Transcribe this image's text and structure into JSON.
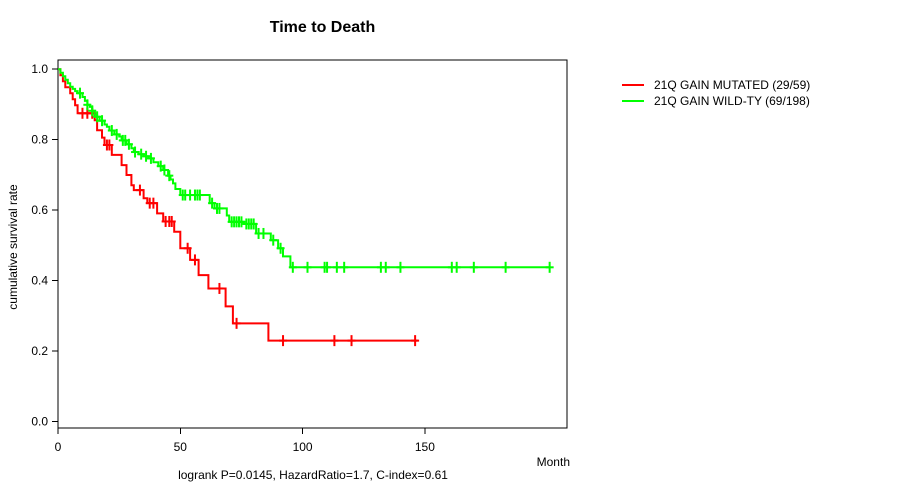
{
  "title": "Time to Death",
  "caption": "logrank P=0.0145, HazardRatio=1.7, C-index=0.61",
  "axes": {
    "x_label": "Month",
    "y_label": "cumulative survival rate",
    "x_tick_labels": [
      "0",
      "50",
      "100",
      "150"
    ],
    "y_tick_labels": [
      "0.0",
      "0.2",
      "0.4",
      "0.6",
      "0.8",
      "1.0"
    ]
  },
  "chart_data": {
    "type": "line",
    "subtype": "kaplan-meier-step-survival",
    "title": "Time to Death",
    "xlabel": "Month",
    "ylabel": "cumulative survival rate",
    "annotation": "logrank P=0.0145, HazardRatio=1.7, C-index=0.61",
    "xlim": [
      0,
      208
    ],
    "ylim": [
      0,
      1.0
    ],
    "x_ticks": [
      0,
      50,
      100,
      150
    ],
    "y_ticks": [
      0.0,
      0.2,
      0.4,
      0.6,
      0.8,
      1.0
    ],
    "grid": false,
    "legend_position": "right-outside",
    "series": [
      {
        "name": "21Q GAIN MUTATED (29/59)",
        "color": "#FF0000",
        "end_time": 147,
        "points": [
          [
            0,
            1.0
          ],
          [
            1,
            0.983
          ],
          [
            2,
            0.966
          ],
          [
            3,
            0.949
          ],
          [
            5,
            0.932
          ],
          [
            6,
            0.915
          ],
          [
            7,
            0.898
          ],
          [
            8,
            0.875
          ],
          [
            15,
            0.855
          ],
          [
            16,
            0.827
          ],
          [
            18,
            0.806
          ],
          [
            19,
            0.785
          ],
          [
            22,
            0.757
          ],
          [
            26,
            0.728
          ],
          [
            28,
            0.7
          ],
          [
            30,
            0.671
          ],
          [
            31,
            0.657
          ],
          [
            35,
            0.634
          ],
          [
            36.5,
            0.62
          ],
          [
            40.5,
            0.591
          ],
          [
            43,
            0.568
          ],
          [
            47.5,
            0.539
          ],
          [
            50,
            0.492
          ],
          [
            54,
            0.459
          ],
          [
            57.5,
            0.416
          ],
          [
            61.5,
            0.378
          ],
          [
            68.5,
            0.327
          ],
          [
            71.5,
            0.279
          ],
          [
            86,
            0.23
          ]
        ],
        "censor_times": [
          10,
          12,
          14,
          20,
          21,
          33.5,
          37.5,
          39,
          44,
          45.5,
          46.5,
          53,
          56,
          66,
          73,
          92,
          113,
          120,
          146
        ]
      },
      {
        "name": "21Q GAIN WILD-TY (69/198)",
        "color": "#00FF00",
        "end_time": 201,
        "points": [
          [
            0,
            1.0
          ],
          [
            1,
            0.99
          ],
          [
            2,
            0.98
          ],
          [
            3,
            0.97
          ],
          [
            4,
            0.96
          ],
          [
            5,
            0.95
          ],
          [
            6,
            0.944
          ],
          [
            7,
            0.938
          ],
          [
            8,
            0.932
          ],
          [
            10,
            0.921
          ],
          [
            11,
            0.91
          ],
          [
            12,
            0.899
          ],
          [
            13,
            0.893
          ],
          [
            14,
            0.882
          ],
          [
            15,
            0.871
          ],
          [
            16,
            0.865
          ],
          [
            17,
            0.854
          ],
          [
            19,
            0.843
          ],
          [
            20,
            0.837
          ],
          [
            21,
            0.826
          ],
          [
            23,
            0.815
          ],
          [
            25,
            0.809
          ],
          [
            26,
            0.798
          ],
          [
            28,
            0.787
          ],
          [
            30,
            0.776
          ],
          [
            31,
            0.765
          ],
          [
            33,
            0.759
          ],
          [
            35,
            0.753
          ],
          [
            37,
            0.747
          ],
          [
            39,
            0.736
          ],
          [
            41,
            0.725
          ],
          [
            43,
            0.714
          ],
          [
            45,
            0.698
          ],
          [
            46,
            0.687
          ],
          [
            47,
            0.676
          ],
          [
            48,
            0.66
          ],
          [
            50,
            0.643
          ],
          [
            62,
            0.62
          ],
          [
            64,
            0.605
          ],
          [
            69,
            0.585
          ],
          [
            70,
            0.567
          ],
          [
            76,
            0.561
          ],
          [
            81,
            0.534
          ],
          [
            87,
            0.515
          ],
          [
            90,
            0.492
          ],
          [
            92,
            0.469
          ],
          [
            95,
            0.438
          ]
        ],
        "censor_times": [
          9,
          12,
          14,
          16,
          18,
          22,
          24,
          26.5,
          27.5,
          29,
          31.5,
          34,
          36,
          38,
          42,
          43.5,
          45.5,
          51,
          52,
          54,
          56,
          57,
          58,
          63,
          65,
          66,
          71,
          72,
          73,
          74,
          75,
          77,
          78,
          79,
          80,
          82,
          84,
          88,
          91,
          96,
          102,
          109,
          110,
          114,
          117,
          132,
          134,
          140,
          161,
          163,
          170,
          183,
          201
        ]
      }
    ]
  }
}
